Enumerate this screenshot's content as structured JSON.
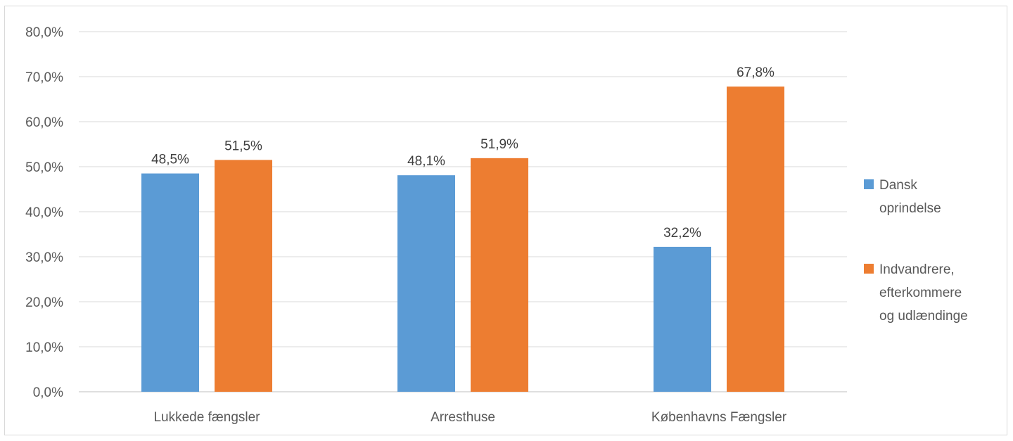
{
  "chart_data": {
    "type": "bar",
    "categories": [
      "Lukkede fængsler",
      "Arresthuse",
      "Københavns Fængsler"
    ],
    "series": [
      {
        "name": "Dansk oprindelse",
        "color": "#5b9bd5",
        "values": [
          48.5,
          48.1,
          32.2
        ],
        "labels": [
          "48,5%",
          "48,1%",
          "32,2%"
        ]
      },
      {
        "name": "Indvandrere, efterkommere og udlændinge",
        "color": "#ed7d31",
        "values": [
          51.5,
          51.9,
          67.8
        ],
        "labels": [
          "51,5%",
          "51,9%",
          "67,8%"
        ]
      }
    ],
    "legend": {
      "position": "right",
      "entries": [
        {
          "lines": [
            "Dansk",
            "oprindelse"
          ],
          "color": "#5b9bd5"
        },
        {
          "lines": [
            "Indvandrere,",
            "efterkommere",
            "og udlændinge"
          ],
          "color": "#ed7d31"
        }
      ]
    },
    "ylim": [
      0,
      80
    ],
    "yticks": [
      "0,0%",
      "10,0%",
      "20,0%",
      "30,0%",
      "40,0%",
      "50,0%",
      "60,0%",
      "70,0%",
      "80,0%"
    ],
    "grid": true,
    "title": "",
    "xlabel": "",
    "ylabel": ""
  }
}
